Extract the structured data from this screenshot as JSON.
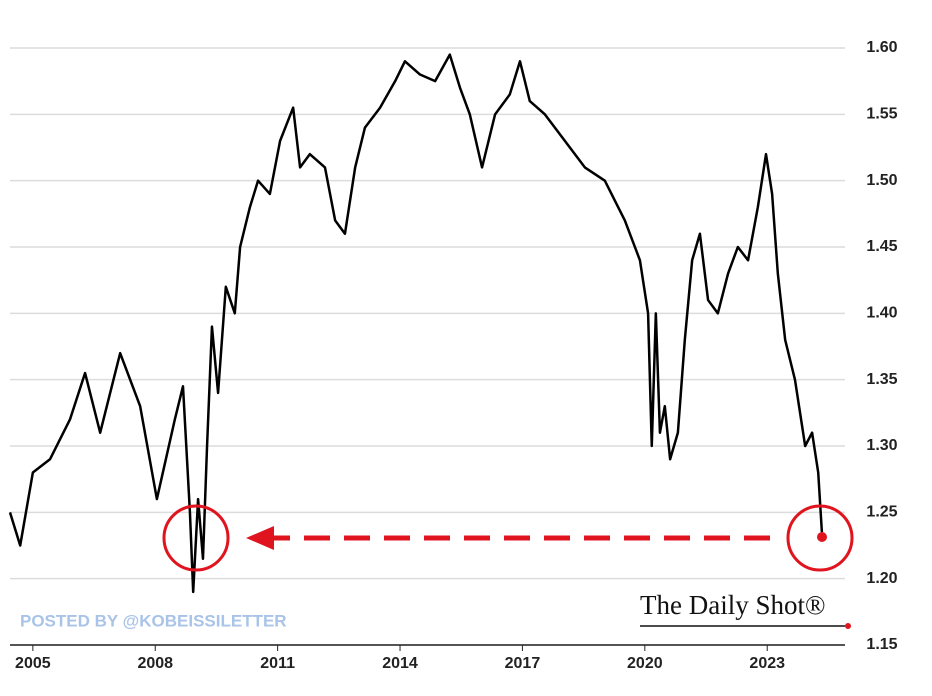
{
  "chart_data": {
    "type": "line",
    "watermark": "POSTED BY @KOBEISSILETTER",
    "source": "The Daily Shot®",
    "x": [
      2004.44,
      2004.69,
      2005.0,
      2005.42,
      2005.91,
      2006.28,
      2006.65,
      2007.14,
      2007.63,
      2008.04,
      2008.48,
      2008.68,
      2008.85,
      2008.93,
      2009.05,
      2009.17,
      2009.27,
      2009.39,
      2009.54,
      2009.73,
      2009.95,
      2010.08,
      2010.32,
      2010.52,
      2010.81,
      2011.06,
      2011.38,
      2011.55,
      2011.79,
      2012.16,
      2012.41,
      2012.65,
      2012.9,
      2013.14,
      2013.51,
      2013.88,
      2014.12,
      2014.49,
      2014.86,
      2015.22,
      2015.47,
      2015.71,
      2016.01,
      2016.33,
      2016.69,
      2016.94,
      2017.18,
      2017.55,
      2018.04,
      2018.53,
      2019.02,
      2019.51,
      2019.88,
      2020.08,
      2020.17,
      2020.27,
      2020.37,
      2020.49,
      2020.62,
      2020.81,
      2020.98,
      2021.16,
      2021.35,
      2021.55,
      2021.79,
      2022.04,
      2022.28,
      2022.53,
      2022.77,
      2022.97,
      2023.12,
      2023.26,
      2023.44,
      2023.68,
      2023.93,
      2024.1,
      2024.25,
      2024.34
    ],
    "series": [
      {
        "color": "#000000",
        "values": [
          1.25,
          1.225,
          1.28,
          1.29,
          1.32,
          1.355,
          1.31,
          1.37,
          1.33,
          1.26,
          1.32,
          1.345,
          1.25,
          1.19,
          1.26,
          1.215,
          1.3,
          1.39,
          1.34,
          1.42,
          1.4,
          1.45,
          1.48,
          1.5,
          1.49,
          1.53,
          1.555,
          1.51,
          1.52,
          1.51,
          1.47,
          1.46,
          1.51,
          1.54,
          1.555,
          1.575,
          1.59,
          1.58,
          1.575,
          1.595,
          1.57,
          1.55,
          1.51,
          1.55,
          1.565,
          1.59,
          1.56,
          1.55,
          1.53,
          1.51,
          1.5,
          1.47,
          1.44,
          1.4,
          1.3,
          1.4,
          1.31,
          1.33,
          1.29,
          1.31,
          1.38,
          1.44,
          1.46,
          1.41,
          1.4,
          1.43,
          1.45,
          1.44,
          1.48,
          1.52,
          1.49,
          1.43,
          1.38,
          1.35,
          1.3,
          1.31,
          1.28,
          1.235
        ]
      }
    ],
    "xlim": [
      2004.44,
      2024.6
    ],
    "xticks": [
      2005,
      2008,
      2011,
      2014,
      2017,
      2020,
      2023
    ],
    "ylim": [
      1.15,
      1.6
    ],
    "yticks": [
      {
        "value": 1.15,
        "label": "1.15"
      },
      {
        "value": 1.2,
        "label": "1.20"
      },
      {
        "value": 1.25,
        "label": "1.25"
      },
      {
        "value": 1.3,
        "label": "1.30"
      },
      {
        "value": 1.35,
        "label": "1.35"
      },
      {
        "value": 1.4,
        "label": "1.40"
      },
      {
        "value": 1.45,
        "label": "1.45"
      },
      {
        "value": 1.5,
        "label": "1.50"
      },
      {
        "value": 1.55,
        "label": "1.55"
      },
      {
        "value": 1.6,
        "label": "1.60"
      }
    ],
    "grid": true
  }
}
